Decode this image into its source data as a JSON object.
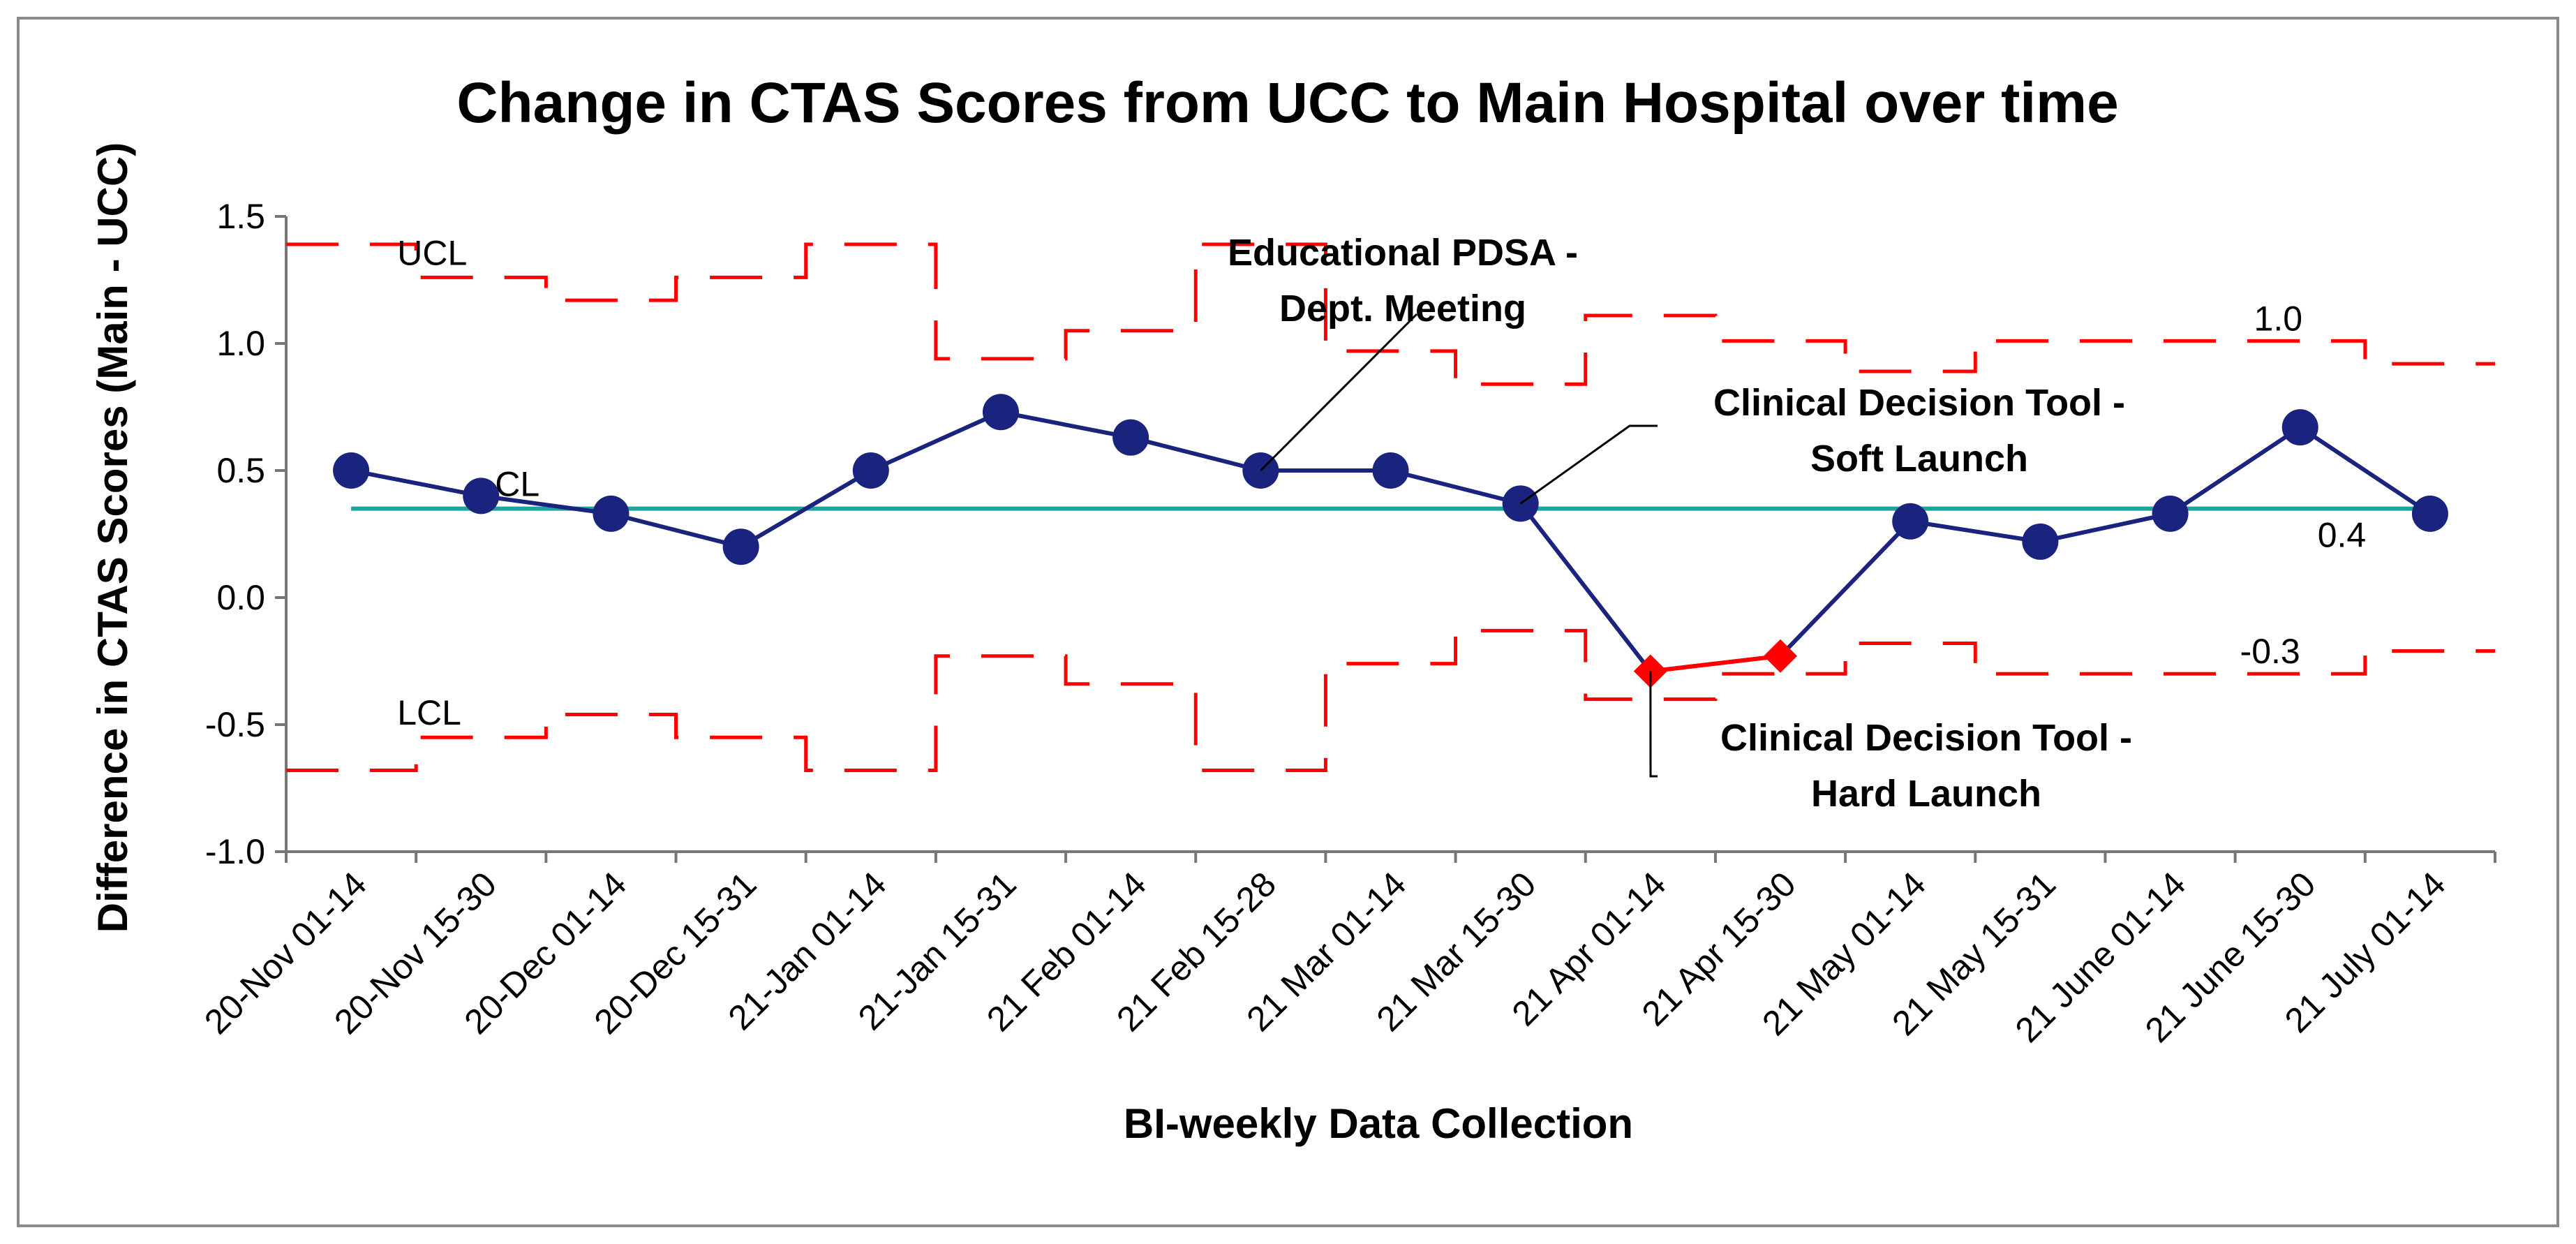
{
  "chart_data": {
    "type": "line",
    "title": "Change in CTAS Scores from UCC to Main Hospital over time",
    "xlabel": "BI-weekly Data Collection",
    "ylabel": "Difference in CTAS Scores (Main - UCC)",
    "ylim": [
      -1.0,
      1.5
    ],
    "yticks": [
      "-1.0",
      "-0.5",
      "0.0",
      "0.5",
      "1.0",
      "1.5"
    ],
    "grid": false,
    "categories": [
      "20-Nov 01-14",
      "20-Nov 15-30",
      "20-Dec 01-14",
      "20-Dec 15-31",
      "21-Jan 01-14",
      "21-Jan 15-31",
      "21 Feb 01-14",
      "21 Feb 15-28",
      "21 Mar 01-14",
      "21 Mar 15-30",
      "21 Apr 01-14",
      "21 Apr 15-30",
      "21 May 01-14",
      "21 May 15-31",
      "21 June 01-14",
      "21 June 15-30",
      "21 July 01-14"
    ],
    "series": [
      {
        "role": "data",
        "color": "#1a237e",
        "values": [
          0.5,
          0.4,
          0.33,
          0.2,
          0.5,
          0.73,
          0.63,
          0.5,
          0.5,
          0.37,
          -0.29,
          -0.23,
          0.3,
          0.22,
          0.33,
          0.67,
          0.33
        ],
        "special_color": "#ff0000",
        "special_points": [
          10,
          11
        ]
      },
      {
        "role": "CL",
        "color": "#20a39e",
        "values": [
          0.35,
          0.35,
          0.35,
          0.35,
          0.35,
          0.35,
          0.35,
          0.35,
          0.35,
          0.35,
          0.35,
          0.35,
          0.35,
          0.35,
          0.35,
          0.35,
          0.35
        ]
      },
      {
        "role": "UCL",
        "color": "#ff0000",
        "values": [
          1.39,
          1.26,
          1.17,
          1.26,
          1.39,
          0.94,
          1.05,
          1.39,
          0.97,
          0.84,
          1.11,
          1.01,
          0.89,
          1.01,
          1.01,
          1.01,
          0.92
        ]
      },
      {
        "role": "LCL",
        "color": "#ff0000",
        "values": [
          -0.68,
          -0.55,
          -0.46,
          -0.55,
          -0.68,
          -0.23,
          -0.34,
          -0.68,
          -0.26,
          -0.13,
          -0.4,
          -0.3,
          -0.18,
          -0.3,
          -0.3,
          -0.3,
          -0.21
        ]
      }
    ],
    "labels": {
      "ucl": "UCL",
      "lcl": "LCL",
      "cl": "CL",
      "ucl_value": "1.0",
      "cl_value": "0.4",
      "lcl_value": "-0.3"
    },
    "annotations": [
      {
        "lines": [
          "Educational PDSA -",
          "Dept. Meeting"
        ],
        "point": 7
      },
      {
        "lines": [
          "Clinical Decision Tool -",
          "Soft Launch"
        ],
        "point": 9
      },
      {
        "lines": [
          "Clinical Decision Tool -",
          "Hard Launch"
        ],
        "point": 10
      }
    ]
  }
}
